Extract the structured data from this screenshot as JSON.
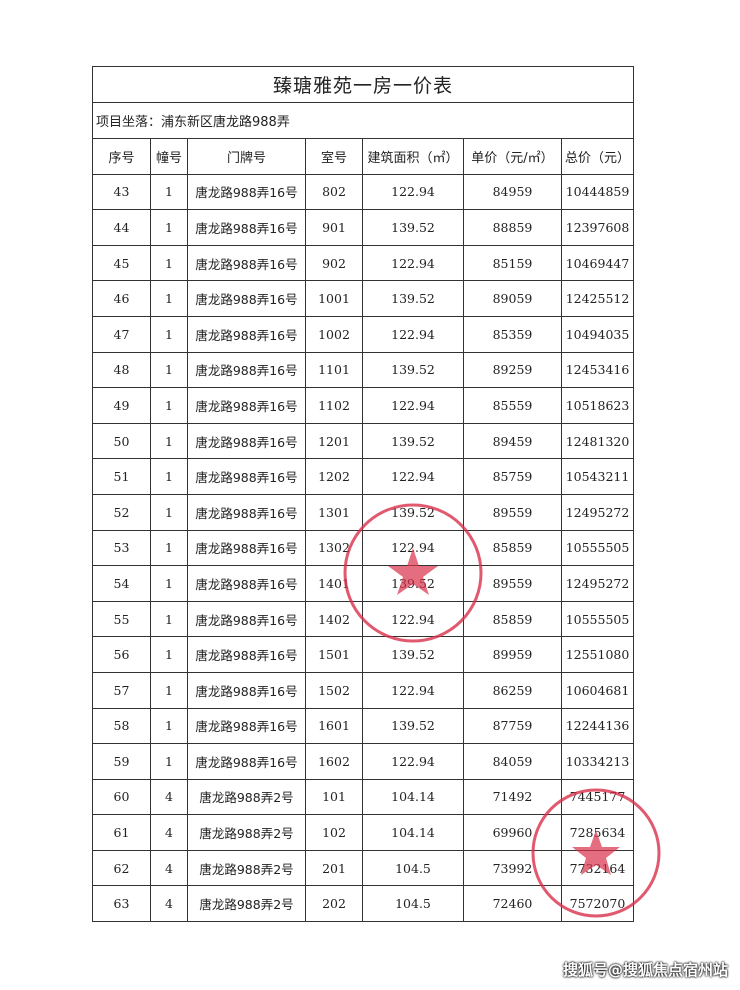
{
  "title": "臻瑭雅苑一房一价表",
  "address": "项目坐落：浦东新区唐龙路988弄",
  "columns": [
    "序号",
    "幢号",
    "门牌号",
    "室号",
    "建筑面积（㎡）",
    "单价（元/㎡）",
    "总价（元）"
  ],
  "rows": [
    [
      "43",
      "1",
      "唐龙路988弄16号",
      "802",
      "122.94",
      "84959",
      "10444859"
    ],
    [
      "44",
      "1",
      "唐龙路988弄16号",
      "901",
      "139.52",
      "88859",
      "12397608"
    ],
    [
      "45",
      "1",
      "唐龙路988弄16号",
      "902",
      "122.94",
      "85159",
      "10469447"
    ],
    [
      "46",
      "1",
      "唐龙路988弄16号",
      "1001",
      "139.52",
      "89059",
      "12425512"
    ],
    [
      "47",
      "1",
      "唐龙路988弄16号",
      "1002",
      "122.94",
      "85359",
      "10494035"
    ],
    [
      "48",
      "1",
      "唐龙路988弄16号",
      "1101",
      "139.52",
      "89259",
      "12453416"
    ],
    [
      "49",
      "1",
      "唐龙路988弄16号",
      "1102",
      "122.94",
      "85559",
      "10518623"
    ],
    [
      "50",
      "1",
      "唐龙路988弄16号",
      "1201",
      "139.52",
      "89459",
      "12481320"
    ],
    [
      "51",
      "1",
      "唐龙路988弄16号",
      "1202",
      "122.94",
      "85759",
      "10543211"
    ],
    [
      "52",
      "1",
      "唐龙路988弄16号",
      "1301",
      "139.52",
      "89559",
      "12495272"
    ],
    [
      "53",
      "1",
      "唐龙路988弄16号",
      "1302",
      "122.94",
      "85859",
      "10555505"
    ],
    [
      "54",
      "1",
      "唐龙路988弄16号",
      "1401",
      "139.52",
      "89559",
      "12495272"
    ],
    [
      "55",
      "1",
      "唐龙路988弄16号",
      "1402",
      "122.94",
      "85859",
      "10555505"
    ],
    [
      "56",
      "1",
      "唐龙路988弄16号",
      "1501",
      "139.52",
      "89959",
      "12551080"
    ],
    [
      "57",
      "1",
      "唐龙路988弄16号",
      "1502",
      "122.94",
      "86259",
      "10604681"
    ],
    [
      "58",
      "1",
      "唐龙路988弄16号",
      "1601",
      "139.52",
      "87759",
      "12244136"
    ],
    [
      "59",
      "1",
      "唐龙路988弄16号",
      "1602",
      "122.94",
      "84059",
      "10334213"
    ],
    [
      "60",
      "4",
      "唐龙路988弄2号",
      "101",
      "104.14",
      "71492",
      "7445177"
    ],
    [
      "61",
      "4",
      "唐龙路988弄2号",
      "102",
      "104.14",
      "69960",
      "7285634"
    ],
    [
      "62",
      "4",
      "唐龙路988弄2号",
      "201",
      "104.5",
      "73992",
      "7732164"
    ],
    [
      "63",
      "4",
      "唐龙路988弄2号",
      "202",
      "104.5",
      "72460",
      "7572070"
    ]
  ],
  "stamp_color": "#d9304a",
  "watermark": "搜狐号@搜狐焦点宿州站"
}
